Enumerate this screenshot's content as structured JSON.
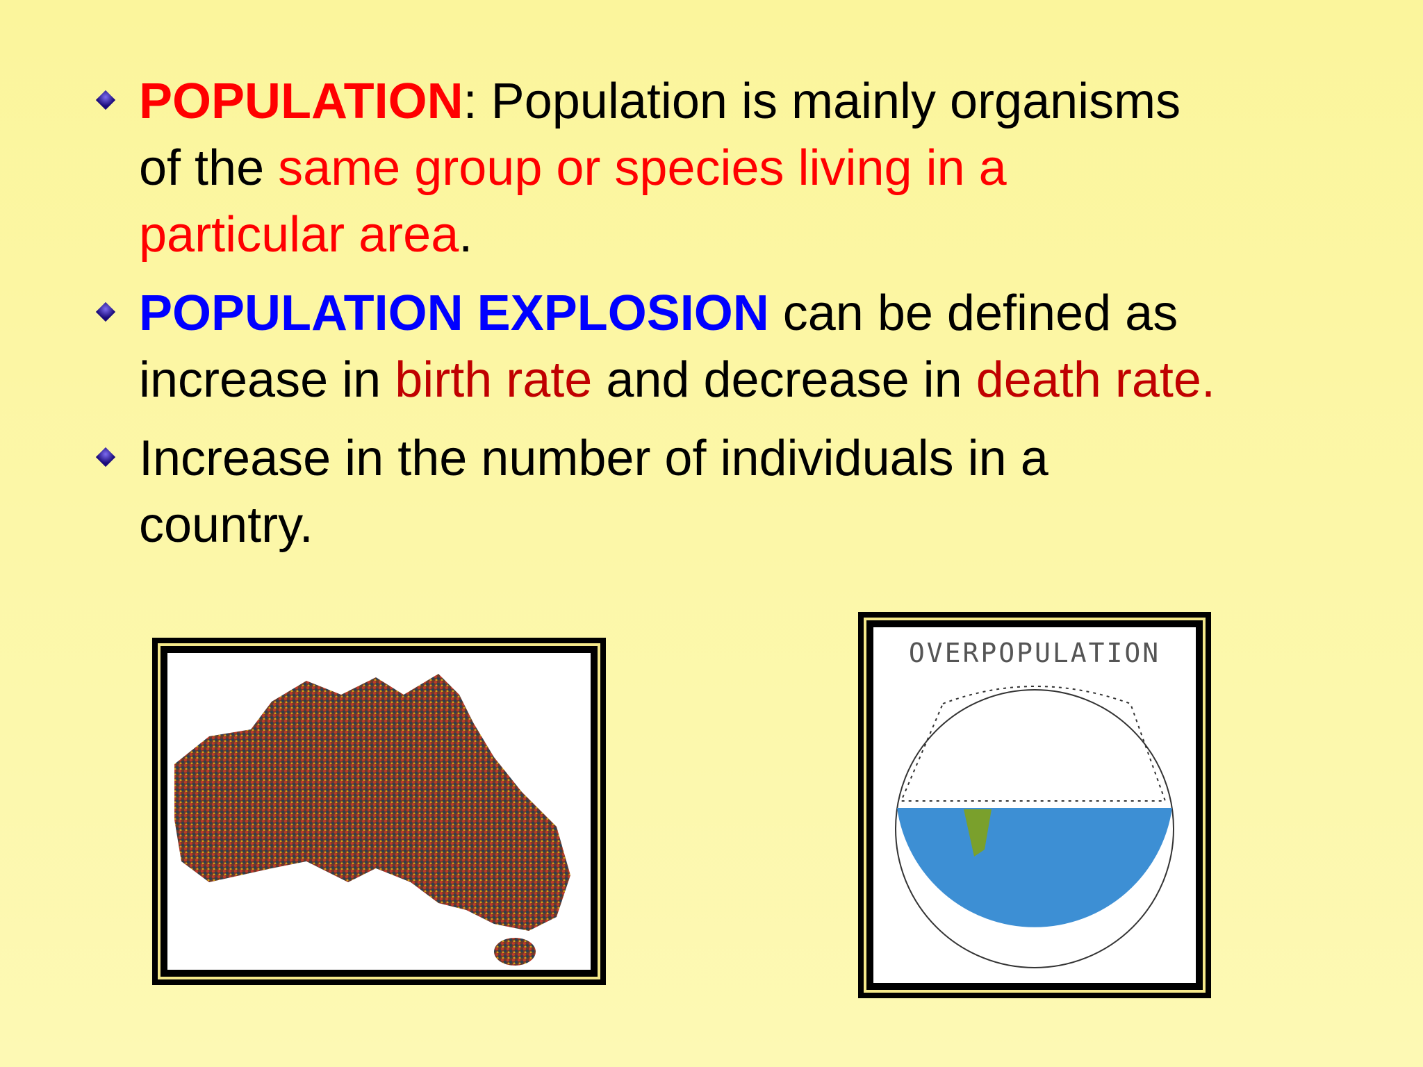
{
  "bullets": [
    {
      "lines": [
        [
          {
            "text": "POPULATION",
            "color": "#ff0000",
            "bold": true
          },
          {
            "text": ": Population is mainly organisms",
            "color": "#000000",
            "bold": false
          }
        ],
        [
          {
            "text": "of the ",
            "color": "#000000",
            "bold": false
          },
          {
            "text": "same group or species living in a",
            "color": "#ff0000",
            "bold": false
          }
        ],
        [
          {
            "text": "particular area",
            "color": "#ff0000",
            "bold": false
          },
          {
            "text": ".",
            "color": "#000000",
            "bold": false
          }
        ]
      ]
    },
    {
      "lines": [
        [
          {
            "text": "POPULATION EXPLOSION",
            "color": "#0000ff",
            "bold": true
          },
          {
            "text": " can be defined as",
            "color": "#000000",
            "bold": false
          }
        ],
        [
          {
            "text": "increase in ",
            "color": "#000000",
            "bold": false
          },
          {
            "text": "birth rate",
            "color": "#c00000",
            "bold": false
          },
          {
            "text": " and decrease in ",
            "color": "#000000",
            "bold": false
          },
          {
            "text": "death rate.",
            "color": "#c00000",
            "bold": false
          }
        ]
      ]
    },
    {
      "lines": [
        [
          {
            "text": "Increase in the number of individuals in a",
            "color": "#000000",
            "bold": false
          }
        ],
        [
          {
            "text": "country.",
            "color": "#000000",
            "bold": false
          }
        ]
      ]
    }
  ],
  "images": [
    {},
    {
      "caption": "OVERPOPULATION"
    }
  ]
}
